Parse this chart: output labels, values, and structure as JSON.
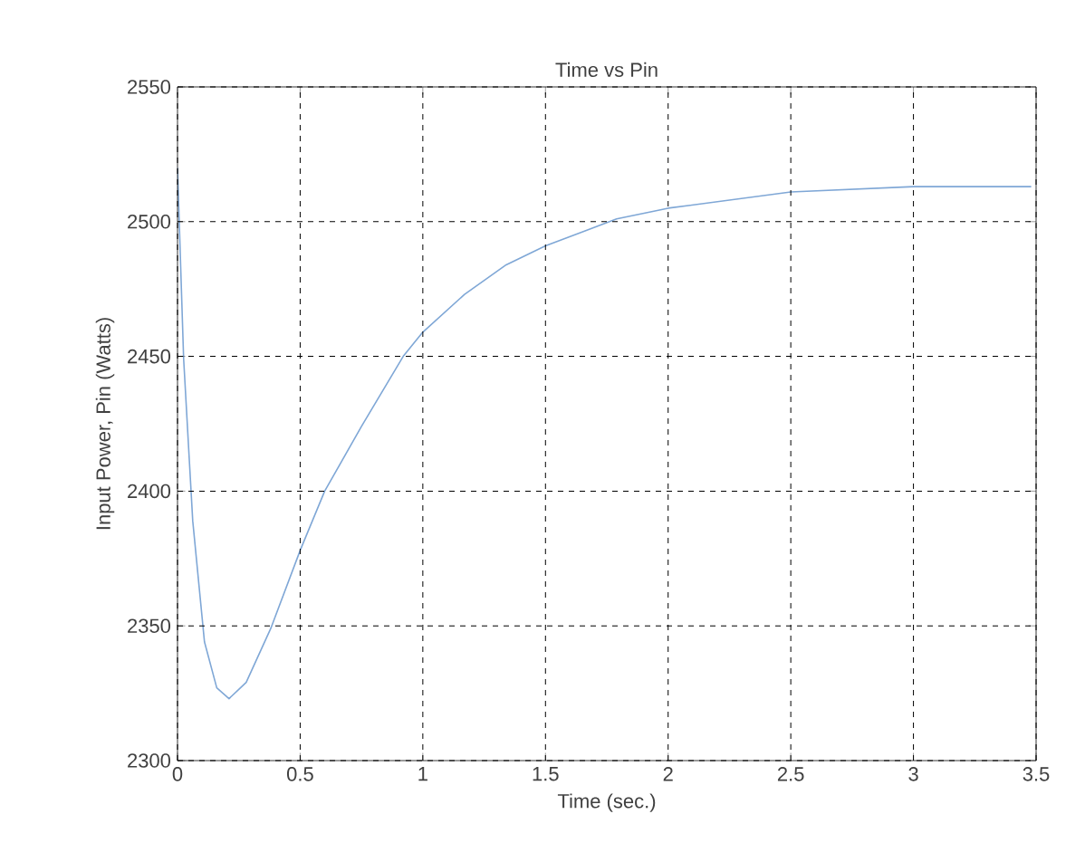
{
  "chart_data": {
    "type": "line",
    "title": "Time vs Pin",
    "xlabel": "Time (sec.)",
    "ylabel": "Input Power, Pin (Watts)",
    "xlim": [
      0,
      3.5
    ],
    "ylim": [
      2300,
      2550
    ],
    "xticks": [
      0,
      0.5,
      1,
      1.5,
      2,
      2.5,
      3,
      3.5
    ],
    "yticks": [
      2300,
      2350,
      2400,
      2450,
      2500,
      2550
    ],
    "grid": true,
    "series": [
      {
        "color": "#7fa7d6",
        "x": [
          0,
          0.025,
          0.062,
          0.11,
          0.16,
          0.21,
          0.28,
          0.38,
          0.5,
          0.6,
          0.75,
          0.92,
          1.0,
          1.17,
          1.34,
          1.5,
          1.79,
          2.0,
          2.5,
          3.0,
          3.48
        ],
        "values": [
          2520,
          2449,
          2389,
          2344,
          2327,
          2323,
          2329,
          2349,
          2378,
          2400,
          2424,
          2450,
          2459,
          2473,
          2484,
          2491,
          2501,
          2505,
          2511,
          2513,
          2513
        ]
      }
    ]
  }
}
